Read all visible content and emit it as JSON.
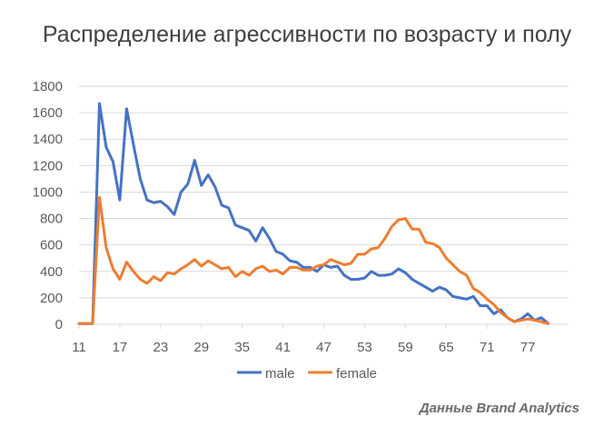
{
  "chart_data": {
    "type": "line",
    "title": "Распределение агрессивности по возрасту и полу",
    "xlabel": "",
    "ylabel": "",
    "ylim": [
      0,
      1800
    ],
    "yticks": [
      0,
      200,
      400,
      600,
      800,
      1000,
      1200,
      1400,
      1600,
      1800
    ],
    "xlim": [
      11,
      83
    ],
    "xticks": [
      11,
      17,
      23,
      29,
      35,
      41,
      47,
      53,
      59,
      65,
      71,
      77
    ],
    "grid": "horizontal",
    "legend_position": "bottom",
    "x": [
      11,
      12,
      13,
      14,
      15,
      16,
      17,
      18,
      19,
      20,
      21,
      22,
      23,
      24,
      25,
      26,
      27,
      28,
      29,
      30,
      31,
      32,
      33,
      34,
      35,
      36,
      37,
      38,
      39,
      40,
      41,
      42,
      43,
      44,
      45,
      46,
      47,
      48,
      49,
      50,
      51,
      52,
      53,
      54,
      55,
      56,
      57,
      58,
      59,
      60,
      61,
      62,
      63,
      64,
      65,
      66,
      67,
      68,
      69,
      70,
      71,
      72,
      73,
      74,
      75,
      76,
      77,
      78,
      79,
      80
    ],
    "series": [
      {
        "name": "male",
        "color": "#4472c4",
        "values": [
          5,
          5,
          5,
          1670,
          1340,
          1230,
          940,
          1630,
          1360,
          1100,
          940,
          920,
          930,
          890,
          830,
          1000,
          1060,
          1240,
          1050,
          1130,
          1040,
          900,
          880,
          750,
          730,
          710,
          630,
          730,
          650,
          550,
          530,
          480,
          470,
          430,
          430,
          400,
          450,
          430,
          440,
          370,
          340,
          340,
          350,
          400,
          370,
          370,
          380,
          420,
          390,
          340,
          310,
          280,
          250,
          280,
          260,
          210,
          200,
          190,
          210,
          140,
          140,
          80,
          110,
          50,
          20,
          40,
          80,
          30,
          50,
          5
        ]
      },
      {
        "name": "female",
        "color": "#ed7d31",
        "values": [
          5,
          5,
          5,
          960,
          580,
          420,
          340,
          470,
          400,
          340,
          310,
          360,
          330,
          390,
          380,
          420,
          450,
          490,
          440,
          480,
          450,
          420,
          430,
          360,
          400,
          370,
          420,
          440,
          400,
          410,
          380,
          430,
          430,
          410,
          410,
          440,
          450,
          490,
          470,
          450,
          460,
          530,
          530,
          570,
          580,
          650,
          740,
          790,
          800,
          720,
          720,
          620,
          610,
          580,
          500,
          450,
          400,
          370,
          270,
          240,
          190,
          150,
          90,
          50,
          20,
          30,
          40,
          30,
          20,
          5
        ]
      }
    ]
  },
  "source_note": "Данные Brand Analytics"
}
